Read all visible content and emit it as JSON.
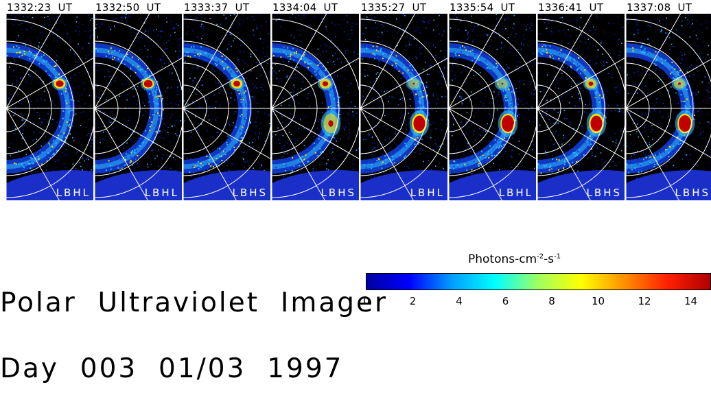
{
  "frames": [
    {
      "time": "1332:23  UT",
      "filter": "LBHL"
    },
    {
      "time": "1332:50  UT",
      "filter": "LBHL"
    },
    {
      "time": "1333:37  UT",
      "filter": "LBHS"
    },
    {
      "time": "1334:04  UT",
      "filter": "LBHS"
    },
    {
      "time": "1335:27  UT",
      "filter": "LBHL"
    },
    {
      "time": "1335:54  UT",
      "filter": "LBHL"
    },
    {
      "time": "1336:41  UT",
      "filter": "LBHS"
    },
    {
      "time": "1337:08  UT",
      "filter": "LBHS"
    }
  ],
  "title": {
    "line1": "Polar  Ultraviolet  Imager",
    "line2": "Day  003  01/03  1997"
  },
  "colorbar": {
    "label_base": "Photons-cm",
    "label_exp1": "-2",
    "label_mid": "-s",
    "label_exp2": "-1",
    "ticks": [
      "0",
      "2",
      "4",
      "6",
      "8",
      "10",
      "12",
      "14"
    ],
    "colors": [
      "#0000a0",
      "#0000ff",
      "#00a0ff",
      "#00ffff",
      "#a0ff60",
      "#ffff00",
      "#ff9000",
      "#ff2000",
      "#b00000"
    ]
  },
  "colors": {
    "background": "#000000",
    "earth": "#1a2fc8",
    "grid": "#ffffff",
    "aurora_low": "#1040e0",
    "aurora_mid": "#30c0ff",
    "aurora_high": "#ffe000",
    "hotspot": "#c00000"
  },
  "intensity": [
    {
      "spot1": 0.8,
      "spot2": 0.0
    },
    {
      "spot1": 0.9,
      "spot2": 0.0
    },
    {
      "spot1": 0.7,
      "spot2": 0.0
    },
    {
      "spot1": 0.6,
      "spot2": 0.4
    },
    {
      "spot1": 0.2,
      "spot2": 0.95
    },
    {
      "spot1": 0.2,
      "spot2": 1.0
    },
    {
      "spot1": 0.5,
      "spot2": 0.95
    },
    {
      "spot1": 0.3,
      "spot2": 1.0
    }
  ]
}
